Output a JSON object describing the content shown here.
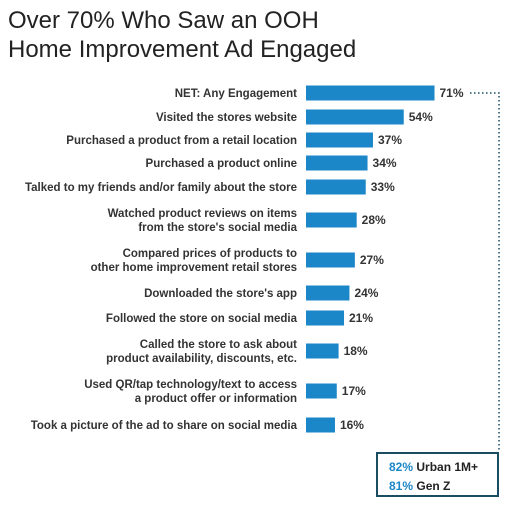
{
  "title_line1": "Over 70% Who Saw an OOH",
  "title_line2": "Home Improvement Ad Engaged",
  "colors": {
    "bar": "#1b86c8",
    "dotted": "#1b4d62",
    "callout_border": "#1b4d62",
    "callout_pct": "#1b86c8"
  },
  "chart_data": {
    "type": "bar",
    "orientation": "horizontal",
    "title": "Over 70% Who Saw an OOH Home Improvement Ad Engaged",
    "categories": [
      [
        "NET: Any Engagement"
      ],
      [
        "Visited the stores website"
      ],
      [
        "Purchased a product from a retail location"
      ],
      [
        "Purchased a product online"
      ],
      [
        "Talked to my friends and/or family about the store"
      ],
      [
        "Watched product reviews on items",
        "from the store's social media"
      ],
      [
        "Compared prices of products to",
        "other home improvement retail stores"
      ],
      [
        "Downloaded the store's app"
      ],
      [
        "Followed the store on social media"
      ],
      [
        "Called the store to ask about",
        "product availability, discounts, etc."
      ],
      [
        "Used QR/tap technology/text to access",
        "a product offer or information"
      ],
      [
        "Took a picture of the ad to share on social media"
      ]
    ],
    "values": [
      71,
      54,
      37,
      34,
      33,
      28,
      27,
      24,
      21,
      18,
      17,
      16
    ],
    "value_labels": [
      "71%",
      "54%",
      "37%",
      "34%",
      "33%",
      "28%",
      "27%",
      "24%",
      "21%",
      "18%",
      "17%",
      "16%"
    ],
    "xlim": [
      0,
      100
    ],
    "grid": false,
    "legend": "none"
  },
  "callout": {
    "items": [
      {
        "pct": "82%",
        "label": "Urban 1M+"
      },
      {
        "pct": "81%",
        "label": "Gen Z"
      }
    ]
  }
}
